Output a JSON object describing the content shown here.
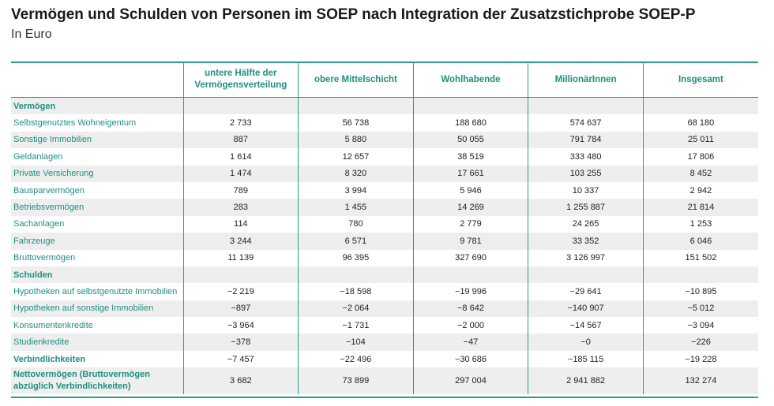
{
  "title": "Vermögen und Schulden von Personen im SOEP nach Integration der Zusatzstichprobe SOEP-P",
  "subtitle": "In Euro",
  "columns": [
    "untere Hälfte der Vermögensverteilung",
    "obere Mittelschicht",
    "Wohlhabende",
    "MillionärInnen",
    "Insgesamt"
  ],
  "rows": [
    {
      "label": "Vermögen",
      "type": "section",
      "values": [
        "",
        "",
        "",
        "",
        ""
      ]
    },
    {
      "label": "Selbstgenutztes Wohneigentum",
      "type": "data",
      "values": [
        "2 733",
        "56 738",
        "188 680",
        "574 637",
        "68 180"
      ]
    },
    {
      "label": "Sonstige Immobilien",
      "type": "data",
      "values": [
        "887",
        "5 880",
        "50 055",
        "791 784",
        "25 011"
      ]
    },
    {
      "label": "Geldanlagen",
      "type": "data",
      "values": [
        "1 614",
        "12 657",
        "38 519",
        "333 480",
        "17 806"
      ]
    },
    {
      "label": "Private Versicherung",
      "type": "data",
      "values": [
        "1 474",
        "8 320",
        "17 661",
        "103 255",
        "8 452"
      ]
    },
    {
      "label": "Bausparvermögen",
      "type": "data",
      "values": [
        "789",
        "3 994",
        "5 946",
        "10 337",
        "2 942"
      ]
    },
    {
      "label": "Betriebsvermögen",
      "type": "data",
      "values": [
        "283",
        "1 455",
        "14 269",
        "1 255 887",
        "21 814"
      ]
    },
    {
      "label": "Sachanlagen",
      "type": "data",
      "values": [
        "114",
        "780",
        "2 779",
        "24 265",
        "1 253"
      ]
    },
    {
      "label": "Fahrzeuge",
      "type": "data",
      "values": [
        "3 244",
        "6 571",
        "9 781",
        "33 352",
        "6 046"
      ]
    },
    {
      "label": "Bruttovermögen",
      "type": "data",
      "values": [
        "11 139",
        "96 395",
        "327 690",
        "3 126 997",
        "151 502"
      ]
    },
    {
      "label": "Schulden",
      "type": "section",
      "values": [
        "",
        "",
        "",
        "",
        ""
      ]
    },
    {
      "label": "Hypotheken auf selbstgenutzte Immobilien",
      "type": "data",
      "values": [
        "−2 219",
        "−18 598",
        "−19 996",
        "−29 641",
        "−10 895"
      ]
    },
    {
      "label": "Hypotheken auf sonstige Immobilien",
      "type": "data",
      "values": [
        "−897",
        "−2 064",
        "−8 642",
        "−140 907",
        "−5 012"
      ]
    },
    {
      "label": "Konsumentenkredite",
      "type": "data",
      "values": [
        "−3 964",
        "−1 731",
        "−2 000",
        "−14 567",
        "−3 094"
      ]
    },
    {
      "label": "Studienkredite",
      "type": "data",
      "values": [
        "−378",
        "−104",
        "−47",
        "−0",
        "−226"
      ]
    },
    {
      "label": "Verbindlichkeiten",
      "type": "bold",
      "values": [
        "−7 457",
        "−22 496",
        "−30 686",
        "−185 115",
        "−19 228"
      ]
    },
    {
      "label": "Nettovermögen (Bruttovermögen abzüglich Verbindlichkeiten)",
      "type": "net",
      "values": [
        "3 682",
        "73 899",
        "297 004",
        "2 941 882",
        "132 274"
      ]
    }
  ]
}
